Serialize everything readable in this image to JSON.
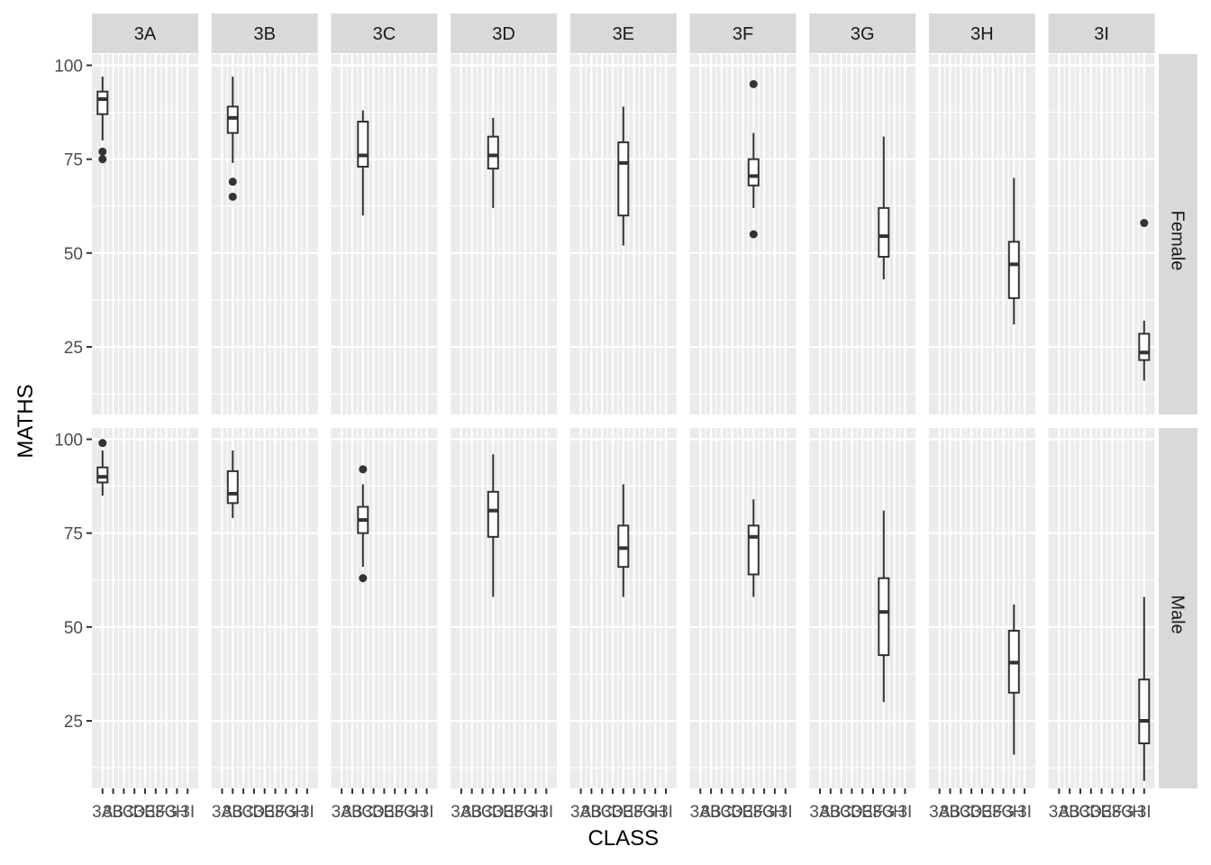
{
  "chart_data": {
    "type": "boxplot",
    "xlabel": "CLASS",
    "ylabel": "MATHS",
    "x_categories": [
      "3A",
      "3B",
      "3C",
      "3D",
      "3E",
      "3F",
      "3G",
      "3H",
      "3I"
    ],
    "col_facets": [
      "3A",
      "3B",
      "3C",
      "3D",
      "3E",
      "3F",
      "3G",
      "3H",
      "3I"
    ],
    "row_facets": [
      "Female",
      "Male"
    ],
    "ylim": [
      7,
      103
    ],
    "y_ticks": [
      25,
      50,
      75,
      100
    ],
    "grid": true,
    "boxes": [
      {
        "row": "Female",
        "col": "3A",
        "x": "3A",
        "lower": 80,
        "q1": 87,
        "median": 91,
        "q3": 93,
        "upper": 97,
        "outliers": [
          77,
          75
        ]
      },
      {
        "row": "Female",
        "col": "3B",
        "x": "3B",
        "lower": 74,
        "q1": 82,
        "median": 86,
        "q3": 89,
        "upper": 97,
        "outliers": [
          69,
          65
        ]
      },
      {
        "row": "Female",
        "col": "3C",
        "x": "3C",
        "lower": 60,
        "q1": 73,
        "median": 76,
        "q3": 85,
        "upper": 88,
        "outliers": []
      },
      {
        "row": "Female",
        "col": "3D",
        "x": "3D",
        "lower": 62,
        "q1": 72.5,
        "median": 76,
        "q3": 81,
        "upper": 86,
        "outliers": []
      },
      {
        "row": "Female",
        "col": "3E",
        "x": "3E",
        "lower": 52,
        "q1": 60,
        "median": 74,
        "q3": 79.5,
        "upper": 89,
        "outliers": []
      },
      {
        "row": "Female",
        "col": "3F",
        "x": "3F",
        "lower": 62,
        "q1": 68,
        "median": 70.5,
        "q3": 75,
        "upper": 82,
        "outliers": [
          95,
          55
        ]
      },
      {
        "row": "Female",
        "col": "3G",
        "x": "3G",
        "lower": 43,
        "q1": 49,
        "median": 54.5,
        "q3": 62,
        "upper": 81,
        "outliers": []
      },
      {
        "row": "Female",
        "col": "3H",
        "x": "3H",
        "lower": 31,
        "q1": 38,
        "median": 47,
        "q3": 53,
        "upper": 70,
        "outliers": []
      },
      {
        "row": "Female",
        "col": "3I",
        "x": "3I",
        "lower": 16,
        "q1": 21.5,
        "median": 23.5,
        "q3": 28.5,
        "upper": 32,
        "outliers": [
          58
        ]
      },
      {
        "row": "Male",
        "col": "3A",
        "x": "3A",
        "lower": 85,
        "q1": 88.5,
        "median": 90,
        "q3": 92.5,
        "upper": 97,
        "outliers": [
          99
        ]
      },
      {
        "row": "Male",
        "col": "3B",
        "x": "3B",
        "lower": 79,
        "q1": 83,
        "median": 85.5,
        "q3": 91.5,
        "upper": 97,
        "outliers": []
      },
      {
        "row": "Male",
        "col": "3C",
        "x": "3C",
        "lower": 66,
        "q1": 75,
        "median": 78.5,
        "q3": 82,
        "upper": 88,
        "outliers": [
          92,
          63
        ]
      },
      {
        "row": "Male",
        "col": "3D",
        "x": "3D",
        "lower": 58,
        "q1": 74,
        "median": 81,
        "q3": 86,
        "upper": 96,
        "outliers": []
      },
      {
        "row": "Male",
        "col": "3E",
        "x": "3E",
        "lower": 58,
        "q1": 66,
        "median": 71,
        "q3": 77,
        "upper": 88,
        "outliers": []
      },
      {
        "row": "Male",
        "col": "3F",
        "x": "3F",
        "lower": 58,
        "q1": 64,
        "median": 74,
        "q3": 77,
        "upper": 84,
        "outliers": []
      },
      {
        "row": "Male",
        "col": "3G",
        "x": "3G",
        "lower": 30,
        "q1": 42.5,
        "median": 54,
        "q3": 63,
        "upper": 81,
        "outliers": []
      },
      {
        "row": "Male",
        "col": "3H",
        "x": "3H",
        "lower": 16,
        "q1": 32.5,
        "median": 40.5,
        "q3": 49,
        "upper": 56,
        "outliers": []
      },
      {
        "row": "Male",
        "col": "3I",
        "x": "3I",
        "lower": 9,
        "q1": 19,
        "median": 25,
        "q3": 36,
        "upper": 58,
        "outliers": []
      }
    ]
  },
  "colors": {
    "panel_background": "#EBEBEB",
    "strip_background": "#D9D9D9",
    "grid": "#FFFFFF",
    "box_fill": "#FFFFFF",
    "box_line": "#333333",
    "tick_text": "#4D4D4D"
  }
}
